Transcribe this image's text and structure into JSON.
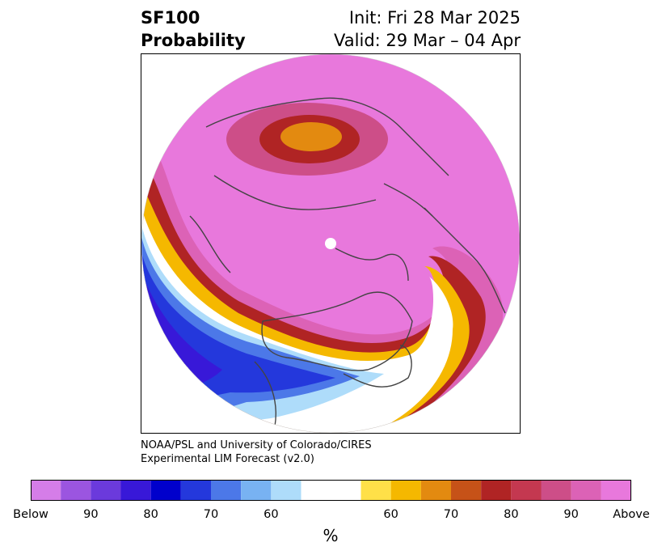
{
  "title": {
    "variable": "SF100",
    "kind": "Probability",
    "init": "Init: Fri 28 Mar 2025",
    "valid": "Valid: 29 Mar – 04 Apr"
  },
  "credit": {
    "line1": "NOAA/PSL and University of Colorado/CIRES",
    "line2": "Experimental LIM Forecast (v2.0)"
  },
  "colorbar": {
    "colors": [
      "#d57de8",
      "#9b55e0",
      "#6b3adc",
      "#3818d8",
      "#0000cc",
      "#2438dc",
      "#4c78e8",
      "#78b2f2",
      "#aedcfa",
      "#ffffff",
      "#ffe048",
      "#f5b800",
      "#e38a10",
      "#c65218",
      "#b02424",
      "#c43850",
      "#cd4e88",
      "#dc62b6",
      "#e878dc"
    ],
    "tick_labels": [
      "Below",
      "90",
      "80",
      "70",
      "60",
      "60",
      "70",
      "80",
      "90",
      "Above"
    ],
    "unit": "%"
  },
  "map": {
    "projection": "north-polar-stereographic",
    "background_color": "#e878dc",
    "coast_color": "#444444"
  }
}
